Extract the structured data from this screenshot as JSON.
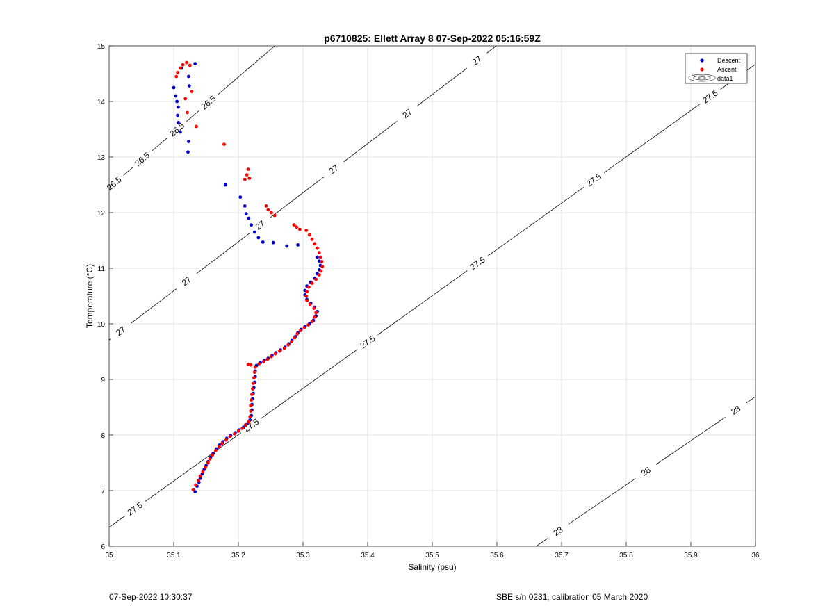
{
  "chart_data": {
    "type": "scatter",
    "title": "p6710825: Ellett Array 8 07-Sep-2022 05:16:59Z",
    "xlabel": "Salinity (psu)",
    "ylabel": "Temperature (°C)",
    "xlim": [
      35,
      36
    ],
    "ylim": [
      6,
      15
    ],
    "xticks": [
      "35",
      "35.1",
      "35.2",
      "35.3",
      "35.4",
      "35.5",
      "35.6",
      "35.7",
      "35.8",
      "35.9",
      "36"
    ],
    "yticks": [
      "6",
      "7",
      "8",
      "9",
      "10",
      "11",
      "12",
      "13",
      "14",
      "15"
    ],
    "grid": true,
    "legend_position": "top-right",
    "legend": [
      "Descent",
      "Ascent",
      "data1"
    ],
    "series": [
      {
        "name": "Descent",
        "color": "#0000cc",
        "points": [
          [
            35.133,
            6.98
          ],
          [
            35.131,
            7.02
          ],
          [
            35.136,
            7.08
          ],
          [
            35.139,
            7.15
          ],
          [
            35.141,
            7.22
          ],
          [
            35.144,
            7.3
          ],
          [
            35.147,
            7.38
          ],
          [
            35.15,
            7.45
          ],
          [
            35.153,
            7.52
          ],
          [
            35.157,
            7.6
          ],
          [
            35.161,
            7.67
          ],
          [
            35.166,
            7.75
          ],
          [
            35.171,
            7.82
          ],
          [
            35.176,
            7.88
          ],
          [
            35.182,
            7.94
          ],
          [
            35.188,
            7.99
          ],
          [
            35.195,
            8.04
          ],
          [
            35.201,
            8.09
          ],
          [
            35.208,
            8.14
          ],
          [
            35.213,
            8.2
          ],
          [
            35.218,
            8.27
          ],
          [
            35.22,
            8.35
          ],
          [
            35.221,
            8.45
          ],
          [
            35.221,
            8.55
          ],
          [
            35.222,
            8.65
          ],
          [
            35.223,
            8.75
          ],
          [
            35.224,
            8.85
          ],
          [
            35.225,
            8.95
          ],
          [
            35.226,
            9.05
          ],
          [
            35.226,
            9.15
          ],
          [
            35.228,
            9.25
          ],
          [
            35.234,
            9.3
          ],
          [
            35.24,
            9.34
          ],
          [
            35.246,
            9.38
          ],
          [
            35.252,
            9.43
          ],
          [
            35.258,
            9.48
          ],
          [
            35.265,
            9.53
          ],
          [
            35.272,
            9.58
          ],
          [
            35.278,
            9.64
          ],
          [
            35.283,
            9.7
          ],
          [
            35.288,
            9.77
          ],
          [
            35.292,
            9.84
          ],
          [
            35.297,
            9.9
          ],
          [
            35.303,
            9.95
          ],
          [
            35.31,
            10.0
          ],
          [
            35.316,
            10.06
          ],
          [
            35.32,
            10.14
          ],
          [
            35.322,
            10.22
          ],
          [
            35.318,
            10.3
          ],
          [
            35.312,
            10.37
          ],
          [
            35.306,
            10.44
          ],
          [
            35.303,
            10.52
          ],
          [
            35.303,
            10.6
          ],
          [
            35.306,
            10.68
          ],
          [
            35.312,
            10.75
          ],
          [
            35.318,
            10.82
          ],
          [
            35.322,
            10.9
          ],
          [
            35.325,
            10.97
          ],
          [
            35.327,
            11.05
          ],
          [
            35.325,
            11.13
          ],
          [
            35.322,
            11.2
          ],
          [
            35.1,
            14.25
          ],
          [
            35.103,
            14.1
          ],
          [
            35.105,
            14.0
          ],
          [
            35.107,
            13.9
          ],
          [
            35.106,
            13.75
          ],
          [
            35.107,
            13.62
          ],
          [
            35.11,
            13.45
          ],
          [
            35.123,
            13.28
          ],
          [
            35.122,
            13.09
          ],
          [
            35.112,
            14.6
          ],
          [
            35.123,
            14.45
          ],
          [
            35.124,
            14.28
          ],
          [
            35.133,
            14.68
          ],
          [
            35.18,
            12.5
          ],
          [
            35.203,
            12.28
          ],
          [
            35.21,
            12.12
          ],
          [
            35.212,
            11.98
          ],
          [
            35.216,
            11.9
          ],
          [
            35.22,
            11.78
          ],
          [
            35.225,
            11.65
          ],
          [
            35.231,
            11.55
          ],
          [
            35.238,
            11.47
          ],
          [
            35.254,
            11.46
          ],
          [
            35.275,
            11.4
          ],
          [
            35.292,
            11.42
          ]
        ]
      },
      {
        "name": "Ascent",
        "color": "#ff0000",
        "points": [
          [
            35.13,
            7.02
          ],
          [
            35.134,
            7.1
          ],
          [
            35.138,
            7.18
          ],
          [
            35.141,
            7.26
          ],
          [
            35.145,
            7.34
          ],
          [
            35.149,
            7.42
          ],
          [
            35.153,
            7.5
          ],
          [
            35.156,
            7.57
          ],
          [
            35.16,
            7.64
          ],
          [
            35.165,
            7.72
          ],
          [
            35.17,
            7.79
          ],
          [
            35.175,
            7.85
          ],
          [
            35.181,
            7.91
          ],
          [
            35.187,
            7.97
          ],
          [
            35.194,
            8.02
          ],
          [
            35.2,
            8.07
          ],
          [
            35.206,
            8.12
          ],
          [
            35.211,
            8.18
          ],
          [
            35.216,
            8.24
          ],
          [
            35.218,
            8.33
          ],
          [
            35.219,
            8.43
          ],
          [
            35.219,
            8.53
          ],
          [
            35.22,
            8.63
          ],
          [
            35.221,
            8.73
          ],
          [
            35.222,
            8.83
          ],
          [
            35.223,
            8.93
          ],
          [
            35.224,
            9.03
          ],
          [
            35.225,
            9.13
          ],
          [
            35.226,
            9.22
          ],
          [
            35.232,
            9.28
          ],
          [
            35.239,
            9.32
          ],
          [
            35.245,
            9.36
          ],
          [
            35.251,
            9.41
          ],
          [
            35.257,
            9.46
          ],
          [
            35.264,
            9.51
          ],
          [
            35.271,
            9.56
          ],
          [
            35.277,
            9.62
          ],
          [
            35.282,
            9.68
          ],
          [
            35.287,
            9.75
          ],
          [
            35.291,
            9.82
          ],
          [
            35.296,
            9.88
          ],
          [
            35.302,
            9.93
          ],
          [
            35.308,
            9.98
          ],
          [
            35.314,
            10.04
          ],
          [
            35.318,
            10.12
          ],
          [
            35.32,
            10.2
          ],
          [
            35.317,
            10.28
          ],
          [
            35.311,
            10.35
          ],
          [
            35.306,
            10.42
          ],
          [
            35.305,
            10.5
          ],
          [
            35.306,
            10.58
          ],
          [
            35.309,
            10.66
          ],
          [
            35.314,
            10.73
          ],
          [
            35.32,
            10.8
          ],
          [
            35.325,
            10.88
          ],
          [
            35.328,
            10.95
          ],
          [
            35.33,
            11.03
          ],
          [
            35.329,
            11.12
          ],
          [
            35.327,
            11.2
          ],
          [
            35.325,
            11.28
          ],
          [
            35.322,
            11.36
          ],
          [
            35.318,
            11.44
          ],
          [
            35.314,
            11.52
          ],
          [
            35.31,
            11.6
          ],
          [
            35.305,
            11.68
          ],
          [
            35.219,
            9.26
          ],
          [
            35.215,
            9.27
          ],
          [
            35.104,
            14.45
          ],
          [
            35.106,
            14.52
          ],
          [
            35.11,
            14.6
          ],
          [
            35.114,
            14.66
          ],
          [
            35.12,
            14.7
          ],
          [
            35.125,
            14.65
          ],
          [
            35.118,
            14.05
          ],
          [
            35.121,
            13.8
          ],
          [
            35.128,
            14.18
          ],
          [
            35.135,
            13.55
          ],
          [
            35.178,
            13.23
          ],
          [
            35.215,
            12.78
          ],
          [
            35.213,
            12.68
          ],
          [
            35.21,
            12.6
          ],
          [
            35.217,
            12.62
          ],
          [
            35.243,
            12.12
          ],
          [
            35.246,
            12.05
          ],
          [
            35.251,
            12.0
          ],
          [
            35.256,
            11.95
          ],
          [
            35.286,
            11.78
          ],
          [
            35.29,
            11.74
          ],
          [
            35.295,
            11.7
          ]
        ]
      }
    ],
    "contours": [
      {
        "level": "26.5",
        "labels": [
          "26.5",
          "26.5",
          "26.5",
          "26.5"
        ]
      },
      {
        "level": "27",
        "labels": [
          "27",
          "27",
          "27",
          "27",
          "27",
          "27"
        ]
      },
      {
        "level": "27.5",
        "labels": [
          "27.5",
          "27.5",
          "27.5",
          "27.5",
          "27.5",
          "27.5"
        ]
      },
      {
        "level": "28",
        "labels": [
          "28",
          "28",
          "28"
        ]
      }
    ]
  },
  "footer": {
    "left": "07-Sep-2022 10:30:37",
    "right": "SBE s/n 0231, calibration 05 March 2020"
  }
}
